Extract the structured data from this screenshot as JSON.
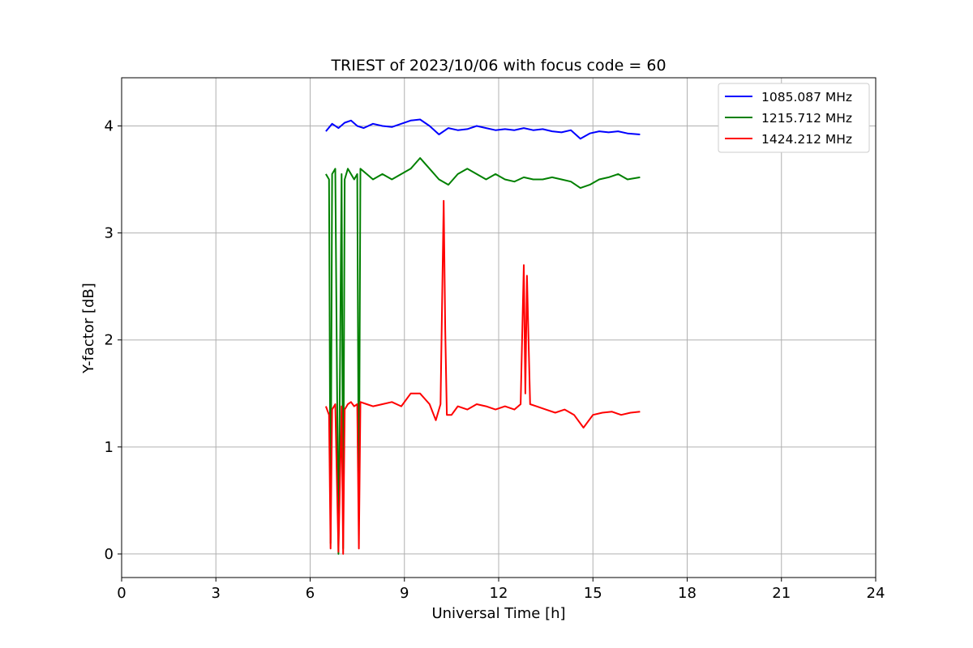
{
  "chart_data": {
    "type": "line",
    "title": "TRIEST of 2023/10/06 with focus code = 60",
    "xlabel": "Universal Time [h]",
    "ylabel": "Y-factor [dB]",
    "xlim": [
      0,
      24
    ],
    "ylim": [
      -0.22,
      4.45
    ],
    "x_ticks": [
      0,
      3,
      6,
      9,
      12,
      15,
      18,
      21,
      24
    ],
    "y_ticks": [
      0,
      1,
      2,
      3,
      4
    ],
    "grid": true,
    "legend_position": "top-right",
    "series": [
      {
        "name": "1085.087 MHz",
        "color": "#0000ff",
        "x": [
          6.5,
          6.7,
          6.9,
          7.1,
          7.3,
          7.5,
          7.7,
          8.0,
          8.3,
          8.6,
          8.9,
          9.2,
          9.5,
          9.8,
          10.1,
          10.4,
          10.7,
          11.0,
          11.3,
          11.6,
          11.9,
          12.2,
          12.5,
          12.8,
          13.1,
          13.4,
          13.7,
          14.0,
          14.3,
          14.6,
          14.9,
          15.2,
          15.5,
          15.8,
          16.1,
          16.5
        ],
        "values": [
          3.95,
          4.02,
          3.98,
          4.03,
          4.05,
          4.0,
          3.98,
          4.02,
          4.0,
          3.99,
          4.02,
          4.05,
          4.06,
          4.0,
          3.92,
          3.98,
          3.96,
          3.97,
          4.0,
          3.98,
          3.96,
          3.97,
          3.96,
          3.98,
          3.96,
          3.97,
          3.95,
          3.94,
          3.96,
          3.88,
          3.93,
          3.95,
          3.94,
          3.95,
          3.93,
          3.92
        ]
      },
      {
        "name": "1215.712 MHz",
        "color": "#008000",
        "x": [
          6.5,
          6.6,
          6.65,
          6.7,
          6.8,
          6.9,
          7.0,
          7.05,
          7.1,
          7.2,
          7.3,
          7.4,
          7.5,
          7.55,
          7.6,
          7.8,
          8.0,
          8.3,
          8.6,
          8.9,
          9.2,
          9.5,
          9.8,
          10.1,
          10.4,
          10.7,
          11.0,
          11.3,
          11.6,
          11.9,
          12.2,
          12.5,
          12.8,
          13.1,
          13.4,
          13.7,
          14.0,
          14.3,
          14.6,
          14.9,
          15.2,
          15.5,
          15.8,
          16.1,
          16.5
        ],
        "values": [
          3.55,
          3.5,
          0.1,
          3.55,
          3.6,
          0.0,
          3.55,
          0.05,
          3.5,
          3.6,
          3.55,
          3.5,
          3.55,
          0.3,
          3.6,
          3.55,
          3.5,
          3.55,
          3.5,
          3.55,
          3.6,
          3.7,
          3.6,
          3.5,
          3.45,
          3.55,
          3.6,
          3.55,
          3.5,
          3.55,
          3.5,
          3.48,
          3.52,
          3.5,
          3.5,
          3.52,
          3.5,
          3.48,
          3.42,
          3.45,
          3.5,
          3.52,
          3.55,
          3.5,
          3.52
        ]
      },
      {
        "name": "1424.212 MHz",
        "color": "#ff0000",
        "x": [
          6.5,
          6.6,
          6.65,
          6.7,
          6.8,
          6.9,
          7.0,
          7.05,
          7.1,
          7.2,
          7.3,
          7.4,
          7.5,
          7.55,
          7.6,
          7.8,
          8.0,
          8.3,
          8.6,
          8.9,
          9.2,
          9.5,
          9.8,
          10.0,
          10.15,
          10.25,
          10.3,
          10.35,
          10.5,
          10.7,
          11.0,
          11.3,
          11.6,
          11.9,
          12.2,
          12.5,
          12.7,
          12.8,
          12.85,
          12.9,
          13.0,
          13.2,
          13.5,
          13.8,
          14.1,
          14.4,
          14.7,
          15.0,
          15.3,
          15.6,
          15.9,
          16.2,
          16.5
        ],
        "values": [
          1.38,
          1.3,
          0.05,
          1.35,
          1.4,
          0.02,
          1.38,
          0.0,
          1.35,
          1.4,
          1.42,
          1.38,
          1.4,
          0.05,
          1.42,
          1.4,
          1.38,
          1.4,
          1.42,
          1.38,
          1.5,
          1.5,
          1.4,
          1.25,
          1.4,
          3.3,
          2.1,
          1.3,
          1.3,
          1.38,
          1.35,
          1.4,
          1.38,
          1.35,
          1.38,
          1.35,
          1.4,
          2.7,
          1.5,
          2.6,
          1.4,
          1.38,
          1.35,
          1.32,
          1.35,
          1.3,
          1.18,
          1.3,
          1.32,
          1.33,
          1.3,
          1.32,
          1.33
        ]
      }
    ]
  }
}
